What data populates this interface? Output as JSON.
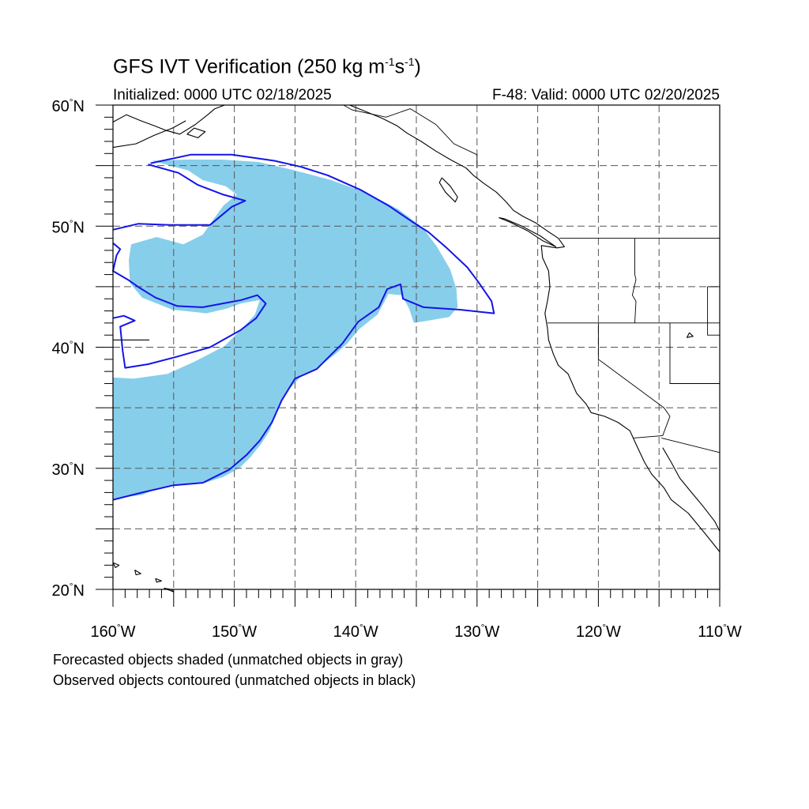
{
  "title": {
    "prefix": "GFS IVT Verification (250 kg m",
    "exp1": "-1",
    "mid": "s",
    "exp2": "-1",
    "suffix": ")"
  },
  "initialized": "Initialized: 0000 UTC 02/18/2025",
  "valid": "F-48: Valid: 0000 UTC 02/20/2025",
  "footnotes": [
    "Forecasted objects shaded (unmatched objects in gray)",
    "Observed objects contoured (unmatched objects in black)"
  ],
  "map": {
    "lon_range": [
      -160,
      -110
    ],
    "lat_range": [
      20,
      60
    ],
    "lon_labels": [
      {
        "value": -160,
        "num": "160",
        "hemi": "W"
      },
      {
        "value": -150,
        "num": "150",
        "hemi": "W"
      },
      {
        "value": -140,
        "num": "140",
        "hemi": "W"
      },
      {
        "value": -130,
        "num": "130",
        "hemi": "W"
      },
      {
        "value": -120,
        "num": "120",
        "hemi": "W"
      },
      {
        "value": -110,
        "num": "110",
        "hemi": "W"
      }
    ],
    "lat_labels": [
      {
        "value": 20,
        "num": "20",
        "hemi": "N"
      },
      {
        "value": 30,
        "num": "30",
        "hemi": "N"
      },
      {
        "value": 40,
        "num": "40",
        "hemi": "N"
      },
      {
        "value": 50,
        "num": "50",
        "hemi": "N"
      },
      {
        "value": 60,
        "num": "60",
        "hemi": "N"
      }
    ],
    "gridline_lons": [
      -155,
      -150,
      -145,
      -140,
      -135,
      -130,
      -125,
      -120,
      -115
    ],
    "gridline_lats": [
      25,
      30,
      35,
      40,
      45,
      50,
      55
    ],
    "colors": {
      "forecast_fill": "#87ceeb",
      "observed_contour": "#1414e6",
      "coastline": "#000000",
      "grid": "#555555"
    },
    "forecast_object": [
      [
        -156.8,
        55.4
      ],
      [
        -154,
        55.5
      ],
      [
        -151,
        55.5
      ],
      [
        -148,
        55.3
      ],
      [
        -145,
        54.6
      ],
      [
        -142,
        53.8
      ],
      [
        -139,
        52.7
      ],
      [
        -136.5,
        51.4
      ],
      [
        -134.5,
        49.9
      ],
      [
        -133.3,
        48.3
      ],
      [
        -132.2,
        46.4
      ],
      [
        -131.7,
        44.8
      ],
      [
        -131.6,
        43.3
      ],
      [
        -132.3,
        42.5
      ],
      [
        -134,
        42.2
      ],
      [
        -135.2,
        42.0
      ],
      [
        -135.6,
        43.2
      ],
      [
        -136.2,
        44.3
      ],
      [
        -137.3,
        44.4
      ],
      [
        -138.2,
        42.7
      ],
      [
        -139.7,
        41.5
      ],
      [
        -140.7,
        40.3
      ],
      [
        -141.6,
        39.5
      ],
      [
        -143,
        38.4
      ],
      [
        -144.6,
        37.5
      ],
      [
        -145.7,
        36.3
      ],
      [
        -146.5,
        34.6
      ],
      [
        -147.1,
        33.1
      ],
      [
        -147.8,
        32.0
      ],
      [
        -148.7,
        30.9
      ],
      [
        -149.6,
        30.0
      ],
      [
        -150.9,
        29.3
      ],
      [
        -152.4,
        28.8
      ],
      [
        -154.6,
        28.6
      ],
      [
        -156.2,
        28.4
      ],
      [
        -157.6,
        27.8
      ],
      [
        -160,
        27.5
      ],
      [
        -160,
        37.5
      ],
      [
        -158.3,
        37.4
      ],
      [
        -155.5,
        37.8
      ],
      [
        -153.3,
        38.8
      ],
      [
        -150.8,
        40.1
      ],
      [
        -149.3,
        41.6
      ],
      [
        -148.3,
        42.7
      ],
      [
        -147.9,
        43.9
      ],
      [
        -149.5,
        43.6
      ],
      [
        -150.6,
        43.2
      ],
      [
        -152.3,
        42.8
      ],
      [
        -155.1,
        43.1
      ],
      [
        -157.6,
        44.1
      ],
      [
        -158.6,
        45.3
      ],
      [
        -158.7,
        47.2
      ],
      [
        -158.5,
        48.5
      ],
      [
        -156.4,
        49.1
      ],
      [
        -154.2,
        48.5
      ],
      [
        -152.6,
        49.3
      ],
      [
        -151.7,
        50.6
      ],
      [
        -150.9,
        51.7
      ],
      [
        -149.8,
        52.6
      ],
      [
        -150.7,
        53.3
      ],
      [
        -152.6,
        53.8
      ],
      [
        -153.8,
        54.6
      ],
      [
        -156.8,
        55.4
      ]
    ],
    "observed_contours": [
      [
        [
          -156.9,
          55.2
        ],
        [
          -153.6,
          55.9
        ],
        [
          -150.2,
          55.9
        ],
        [
          -146.7,
          55.4
        ],
        [
          -144.5,
          54.9
        ],
        [
          -142.3,
          54.2
        ],
        [
          -139.6,
          53.0
        ],
        [
          -137.3,
          51.7
        ],
        [
          -135.4,
          50.4
        ],
        [
          -134,
          49.5
        ],
        [
          -132.5,
          48.2
        ],
        [
          -130.8,
          46.6
        ],
        [
          -129.9,
          45.4
        ],
        [
          -128.8,
          43.8
        ],
        [
          -128.6,
          42.8
        ],
        [
          -131.4,
          43.1
        ],
        [
          -134.4,
          43.3
        ],
        [
          -136.1,
          44.0
        ],
        [
          -136.3,
          45.2
        ],
        [
          -137.4,
          44.8
        ],
        [
          -138.1,
          43.3
        ],
        [
          -139.8,
          42.1
        ],
        [
          -141.1,
          40.3
        ],
        [
          -142.1,
          39.3
        ],
        [
          -143.2,
          38.2
        ],
        [
          -145.0,
          37.4
        ],
        [
          -146.1,
          35.6
        ],
        [
          -146.9,
          33.8
        ],
        [
          -147.9,
          32.3
        ],
        [
          -149.0,
          31.1
        ],
        [
          -150.4,
          29.9
        ],
        [
          -152.6,
          28.8
        ],
        [
          -155.0,
          28.6
        ],
        [
          -157.6,
          28.0
        ],
        [
          -160,
          27.4
        ]
      ],
      [
        [
          -160,
          49.7
        ],
        [
          -157.9,
          50.2
        ],
        [
          -155.3,
          50.1
        ],
        [
          -152.0,
          50.1
        ],
        [
          -150.2,
          51.6
        ],
        [
          -149.1,
          52.1
        ],
        [
          -150.9,
          52.6
        ],
        [
          -153.0,
          53.4
        ],
        [
          -154.6,
          54.4
        ],
        [
          -157.1,
          55.1
        ]
      ],
      [
        [
          -160,
          48.6
        ],
        [
          -159.4,
          48.1
        ],
        [
          -159.7,
          47.6
        ],
        [
          -160,
          46.3
        ],
        [
          -158.8,
          45.6
        ],
        [
          -157.8,
          44.9
        ],
        [
          -156.5,
          44.1
        ],
        [
          -154.7,
          43.4
        ],
        [
          -152.6,
          43.3
        ],
        [
          -149.4,
          43.9
        ],
        [
          -148.1,
          44.3
        ],
        [
          -147.4,
          43.6
        ],
        [
          -148.2,
          42.4
        ],
        [
          -149.5,
          41.4
        ],
        [
          -152.0,
          40.0
        ],
        [
          -154.8,
          39.2
        ],
        [
          -157.1,
          38.6
        ],
        [
          -159.0,
          38.3
        ],
        [
          -159.2,
          39.7
        ],
        [
          -159.4,
          41.7
        ],
        [
          -158.2,
          42.2
        ],
        [
          -159.1,
          42.6
        ],
        [
          -160,
          42.4
        ]
      ]
    ],
    "coastlines": [
      [
        [
          -160,
          58.6
        ],
        [
          -158.9,
          59.2
        ],
        [
          -157.7,
          58.7
        ],
        [
          -156.6,
          58.3
        ],
        [
          -155.6,
          57.9
        ],
        [
          -154.5,
          57.6
        ],
        [
          -153.2,
          58.4
        ],
        [
          -152.2,
          59.2
        ],
        [
          -151.6,
          59.7
        ],
        [
          -150.8,
          60
        ]
      ],
      [
        [
          -160,
          56.5
        ],
        [
          -158.1,
          56.8
        ],
        [
          -156.6,
          57.5
        ],
        [
          -155.1,
          58.1
        ],
        [
          -154.0,
          58.7
        ]
      ],
      [
        [
          -153.9,
          57.6
        ],
        [
          -153.0,
          57.3
        ],
        [
          -152.4,
          57.8
        ],
        [
          -153.3,
          58.1
        ],
        [
          -153.9,
          57.6
        ]
      ],
      [
        [
          -140.5,
          60
        ],
        [
          -139.5,
          59.6
        ],
        [
          -137.8,
          58.9
        ],
        [
          -136.6,
          58.3
        ],
        [
          -135.8,
          57.7
        ],
        [
          -134.6,
          57.0
        ],
        [
          -133.4,
          56.2
        ],
        [
          -132.2,
          55.5
        ],
        [
          -130.9,
          54.8
        ],
        [
          -130.3,
          54.2
        ],
        [
          -129.4,
          53.5
        ],
        [
          -128.4,
          52.8
        ],
        [
          -127.6,
          52.0
        ],
        [
          -127.0,
          51.3
        ],
        [
          -126.2,
          50.8
        ],
        [
          -125.2,
          50.3
        ],
        [
          -124.2,
          49.6
        ],
        [
          -123.3,
          49.0
        ],
        [
          -122.8,
          48.3
        ],
        [
          -123.4,
          48.2
        ],
        [
          -124.7,
          48.4
        ],
        [
          -124.6,
          47.4
        ],
        [
          -124.1,
          46.3
        ],
        [
          -124.0,
          45.0
        ],
        [
          -124.2,
          43.8
        ],
        [
          -124.4,
          42.8
        ],
        [
          -124.2,
          41.6
        ],
        [
          -124.1,
          40.6
        ],
        [
          -123.7,
          39.4
        ],
        [
          -123.3,
          38.5
        ],
        [
          -122.5,
          37.8
        ],
        [
          -122.1,
          36.9
        ],
        [
          -121.8,
          36.2
        ],
        [
          -121.0,
          35.3
        ],
        [
          -120.6,
          34.6
        ],
        [
          -119.5,
          34.3
        ],
        [
          -118.4,
          33.8
        ],
        [
          -117.4,
          33.1
        ],
        [
          -116.9,
          32.0
        ],
        [
          -116.2,
          30.5
        ],
        [
          -115.6,
          29.5
        ],
        [
          -114.6,
          28.4
        ],
        [
          -114.0,
          27.4
        ],
        [
          -112.6,
          26.3
        ],
        [
          -111.2,
          24.6
        ],
        [
          -110,
          23.1
        ]
      ],
      [
        [
          -114.7,
          31.7
        ],
        [
          -114.0,
          30.5
        ],
        [
          -113.3,
          29.2
        ],
        [
          -112.4,
          28.1
        ],
        [
          -111.4,
          26.9
        ],
        [
          -110.4,
          25.6
        ],
        [
          -110,
          24.8
        ]
      ],
      [
        [
          -128.2,
          50.7
        ],
        [
          -127.2,
          50.3
        ],
        [
          -125.8,
          49.6
        ],
        [
          -124.6,
          48.8
        ],
        [
          -123.5,
          48.3
        ],
        [
          -124.8,
          49.2
        ],
        [
          -126.3,
          50.0
        ],
        [
          -127.7,
          50.6
        ],
        [
          -128.2,
          50.7
        ]
      ],
      [
        [
          -132.9,
          54.0
        ],
        [
          -132.2,
          53.3
        ],
        [
          -131.6,
          52.4
        ],
        [
          -131.8,
          52.0
        ],
        [
          -132.6,
          52.8
        ],
        [
          -133.1,
          53.6
        ],
        [
          -132.9,
          54.0
        ]
      ],
      [
        [
          -160,
          22.2
        ],
        [
          -159.5,
          22.0
        ],
        [
          -159.8,
          21.8
        ],
        [
          -160,
          22.2
        ]
      ],
      [
        [
          -158.2,
          21.6
        ],
        [
          -157.7,
          21.3
        ],
        [
          -158.1,
          21.2
        ],
        [
          -158.2,
          21.6
        ]
      ],
      [
        [
          -156.5,
          20.9
        ],
        [
          -156.0,
          20.7
        ],
        [
          -156.4,
          20.6
        ],
        [
          -156.5,
          20.9
        ]
      ],
      [
        [
          -155.8,
          20.1
        ],
        [
          -155.0,
          19.8
        ],
        [
          -155.2,
          20.0
        ],
        [
          -155.8,
          20.1
        ]
      ],
      [
        [
          -112.5,
          41.2
        ],
        [
          -112.2,
          40.9
        ],
        [
          -112.7,
          40.8
        ],
        [
          -112.5,
          41.2
        ]
      ],
      [
        [
          -160,
          40.6
        ],
        [
          -157,
          40.6
        ]
      ]
    ],
    "borders": [
      [
        [
          -141.0,
          60
        ],
        [
          -140.3,
          59.6
        ],
        [
          -137.5,
          59.0
        ],
        [
          -135.5,
          59.7
        ],
        [
          -133.4,
          58.4
        ],
        [
          -131.9,
          56.8
        ],
        [
          -130.0,
          55.9
        ],
        [
          -130.0,
          54.8
        ]
      ],
      [
        [
          -123.2,
          49
        ],
        [
          -110,
          49
        ]
      ],
      [
        [
          -117.0,
          49
        ],
        [
          -117.0,
          46.0
        ],
        [
          -116.9,
          45.6
        ],
        [
          -117.2,
          44.3
        ],
        [
          -116.9,
          43.8
        ],
        [
          -117.0,
          42.0
        ]
      ],
      [
        [
          -124.2,
          42.0
        ],
        [
          -110,
          42.0
        ]
      ],
      [
        [
          -120.0,
          42.0
        ],
        [
          -120.0,
          39.0
        ],
        [
          -114.6,
          35.0
        ],
        [
          -114.1,
          34.3
        ],
        [
          -114.7,
          32.7
        ],
        [
          -117.1,
          32.5
        ]
      ],
      [
        [
          -114.1,
          42.0
        ],
        [
          -114.1,
          37.0
        ],
        [
          -110,
          37.0
        ]
      ],
      [
        [
          -111.0,
          45.0
        ],
        [
          -110,
          45.0
        ]
      ],
      [
        [
          -114.8,
          32.5
        ],
        [
          -110.0,
          31.3
        ]
      ],
      [
        [
          -111.0,
          45.0
        ],
        [
          -111.0,
          41.0
        ],
        [
          -110,
          41.0
        ]
      ]
    ]
  }
}
